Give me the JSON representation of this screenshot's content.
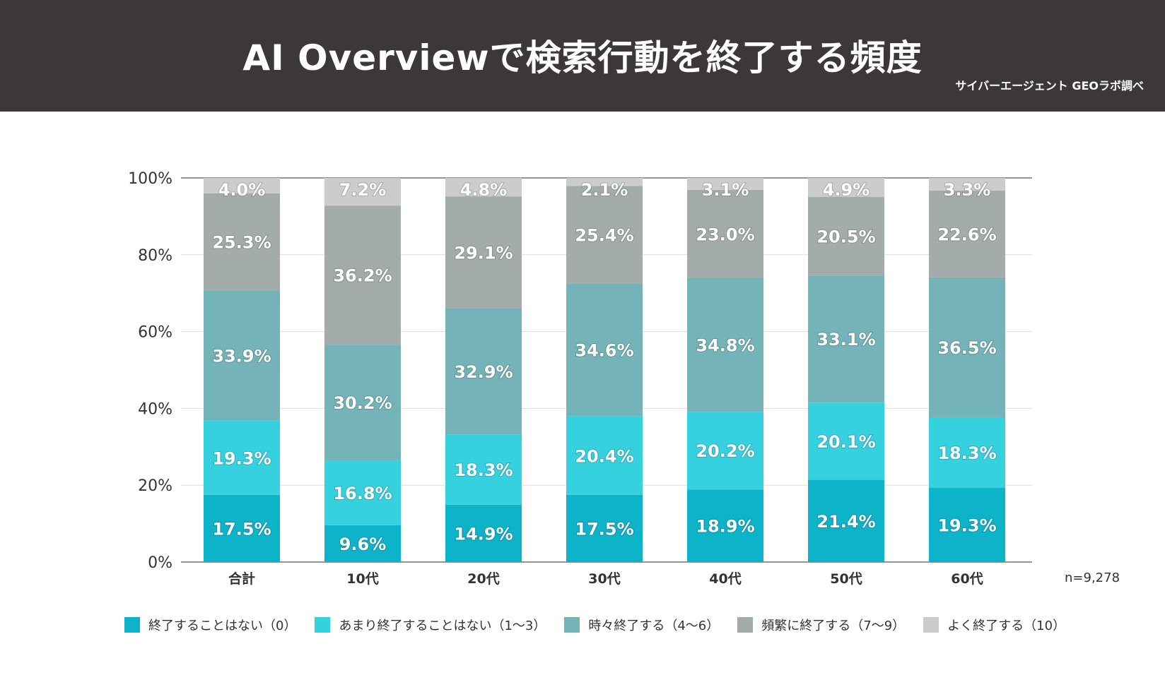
{
  "header": {
    "title": "AI Overviewで検索行動を終了する頻度",
    "source": "サイバーエージェント GEOラボ調べ"
  },
  "n_label": "n=9,278",
  "colors": {
    "header_bg": "#3d3838",
    "series": [
      "#0db3c8",
      "#36d1df",
      "#74b3b8",
      "#a4acab",
      "#cccccc"
    ]
  },
  "legend": [
    {
      "label": "終了することはない（0）",
      "color": "#0db3c8"
    },
    {
      "label": "あまり終了することはない（1〜3）",
      "color": "#36d1df"
    },
    {
      "label": "時々終了する（4〜6）",
      "color": "#74b3b8"
    },
    {
      "label": "頻繁に終了する（7〜9）",
      "color": "#a4acab"
    },
    {
      "label": "よく終了する（10）",
      "color": "#cccccc"
    }
  ],
  "chart_data": {
    "type": "bar",
    "stacked": true,
    "orientation": "vertical",
    "title": "AI Overviewで検索行動を終了する頻度",
    "categories": [
      "合計",
      "10代",
      "20代",
      "30代",
      "40代",
      "50代",
      "60代"
    ],
    "y_ticks": [
      "0%",
      "20%",
      "40%",
      "60%",
      "80%",
      "100%"
    ],
    "ylim": [
      0,
      100
    ],
    "grid": true,
    "legend_position": "bottom",
    "series": [
      {
        "name": "終了することはない（0）",
        "values": [
          17.5,
          9.6,
          14.9,
          17.5,
          18.9,
          21.4,
          19.3
        ],
        "labels": [
          "17.5%",
          "9.6%",
          "14.9%",
          "17.5%",
          "18.9%",
          "21.4%",
          "19.3%"
        ]
      },
      {
        "name": "あまり終了することはない（1〜3）",
        "values": [
          19.3,
          16.8,
          18.3,
          20.4,
          20.2,
          20.1,
          18.3
        ],
        "labels": [
          "19.3%",
          "16.8%",
          "18.3%",
          "20.4%",
          "20.2%",
          "20.1%",
          "18.3%"
        ]
      },
      {
        "name": "時々終了する（4〜6）",
        "values": [
          33.9,
          30.2,
          32.9,
          34.6,
          34.8,
          33.1,
          36.5
        ],
        "labels": [
          "33.9%",
          "30.2%",
          "32.9%",
          "34.6%",
          "34.8%",
          "33.1%",
          "36.5%"
        ]
      },
      {
        "name": "頻繁に終了する（7〜9）",
        "values": [
          25.3,
          36.2,
          29.1,
          25.4,
          23.0,
          20.5,
          22.6
        ],
        "labels": [
          "25.3%",
          "36.2%",
          "29.1%",
          "25.4%",
          "23.0%",
          "20.5%",
          "22.6%"
        ]
      },
      {
        "name": "よく終了する（10）",
        "values": [
          4.0,
          7.2,
          4.8,
          2.1,
          3.1,
          4.9,
          3.3
        ],
        "labels": [
          "4.0%",
          "7.2%",
          "4.8%",
          "2.1%",
          "3.1%",
          "4.9%",
          "3.3%"
        ]
      }
    ]
  }
}
